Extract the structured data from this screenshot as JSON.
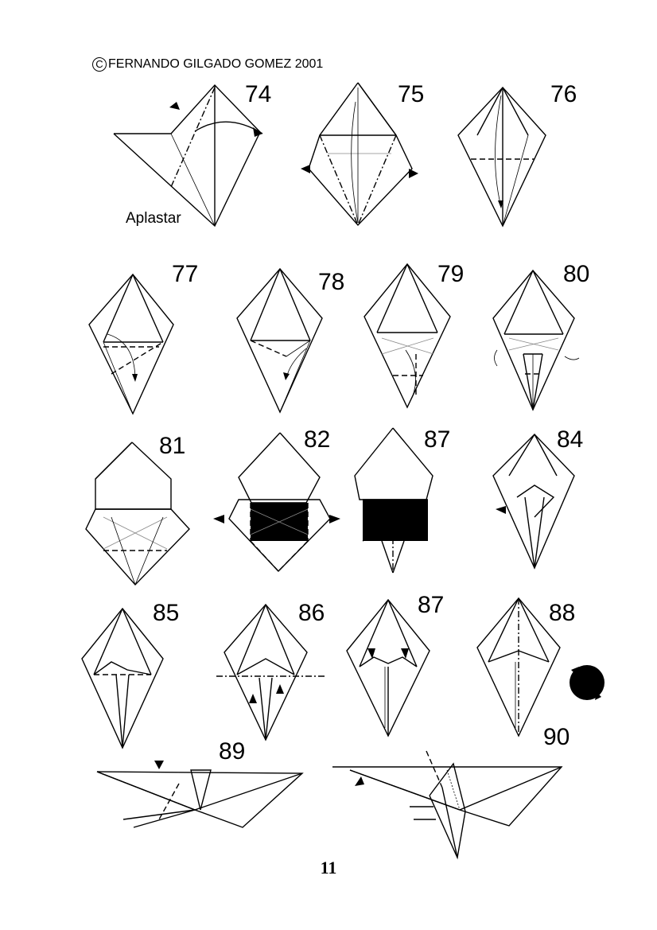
{
  "header": {
    "copyright_symbol": "C",
    "credit": "FERNANDO GILGADO GOMEZ 2001"
  },
  "steps": [
    "74",
    "75",
    "76",
    "77",
    "78",
    "79",
    "80",
    "81",
    "82",
    "87",
    "84",
    "85",
    "86",
    "87",
    "88",
    "89",
    "90"
  ],
  "annotations": {
    "step74_label": "Aplastar"
  },
  "footer": {
    "page_number": "11"
  },
  "icons": {
    "turn_over": "rotate-arrows-icon"
  }
}
